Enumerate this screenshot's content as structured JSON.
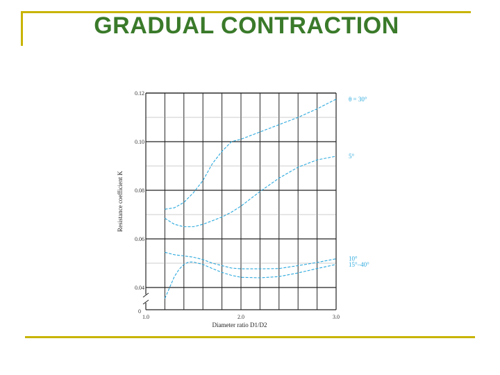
{
  "slide": {
    "title": "GRADUAL CONTRACTION"
  },
  "colors": {
    "title": "#3a7a2a",
    "frame": "#c8b400",
    "curve": "#2aa8dd"
  },
  "chart_data": {
    "type": "line",
    "xlabel": "Diameter ratio D1/D2",
    "ylabel": "Resistance coefficient K",
    "xlim": [
      1.0,
      3.0
    ],
    "ylim": [
      0.04,
      0.12
    ],
    "x_ticks": [
      1.0,
      2.0,
      3.0
    ],
    "x_tick_labels": [
      "1.0",
      "2.0",
      "3.0"
    ],
    "y_ticks": [
      0.04,
      0.06,
      0.08,
      0.1,
      0.12
    ],
    "y_tick_labels": [
      "0.04",
      "0.06",
      "0.08",
      "0.10",
      "0.12"
    ],
    "origin_label": "0",
    "grid": true,
    "series": [
      {
        "name": "θ = 30°",
        "x": [
          1.2,
          1.3,
          1.4,
          1.5,
          1.6,
          1.7,
          1.8,
          1.9,
          2.0,
          2.2,
          2.4,
          2.6,
          2.8,
          3.0
        ],
        "y": [
          0.0722,
          0.0728,
          0.075,
          0.079,
          0.084,
          0.091,
          0.096,
          0.1,
          0.101,
          0.104,
          0.107,
          0.11,
          0.1135,
          0.1175
        ]
      },
      {
        "name": "5°",
        "x": [
          1.2,
          1.3,
          1.4,
          1.5,
          1.6,
          1.7,
          1.8,
          1.9,
          2.0,
          2.2,
          2.4,
          2.6,
          2.8,
          3.0
        ],
        "y": [
          0.0685,
          0.066,
          0.065,
          0.065,
          0.066,
          0.0675,
          0.069,
          0.071,
          0.0735,
          0.0795,
          0.085,
          0.0895,
          0.0925,
          0.094
        ]
      },
      {
        "name": "10°",
        "x": [
          1.2,
          1.3,
          1.4,
          1.5,
          1.6,
          1.7,
          1.8,
          1.9,
          2.0,
          2.2,
          2.4,
          2.6,
          2.8,
          3.0
        ],
        "y": [
          0.0545,
          0.0535,
          0.053,
          0.0525,
          0.0515,
          0.05,
          0.049,
          0.048,
          0.0477,
          0.0477,
          0.0478,
          0.049,
          0.0503,
          0.0518
        ]
      },
      {
        "name": "15°–40°",
        "x": [
          1.2,
          1.25,
          1.3,
          1.35,
          1.4,
          1.45,
          1.5,
          1.6,
          1.7,
          1.8,
          1.9,
          2.0,
          2.2,
          2.4,
          2.6,
          2.8,
          3.0
        ],
        "y": [
          0.0355,
          0.04,
          0.0445,
          0.0475,
          0.0495,
          0.0505,
          0.0505,
          0.0495,
          0.0478,
          0.0462,
          0.045,
          0.0442,
          0.044,
          0.0445,
          0.046,
          0.0478,
          0.0495
        ]
      }
    ]
  }
}
